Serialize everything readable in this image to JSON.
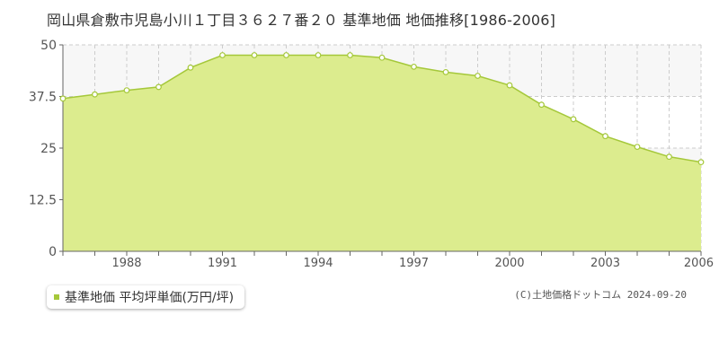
{
  "title": "岡山県倉敷市児島小川１丁目３６２７番２０ 基準地価 地価推移[1986-2006]",
  "legend": {
    "label": "基準地価 平均坪単価(万円/坪)"
  },
  "copyright": "(C)土地価格ドットコム 2024-09-20",
  "colors": {
    "fill": "#dcec8e",
    "line": "#a5c83a",
    "point_fill": "#ffffff",
    "grid": "#cccccc",
    "plot_bg": "#ffffff",
    "plot_bg_alt": "#f7f7f7"
  },
  "chart_data": {
    "type": "area",
    "title": "岡山県倉敷市児島小川１丁目３６２７番２０ 基準地価 地価推移[1986-2006]",
    "xlabel": "",
    "ylabel": "",
    "x": [
      1986,
      1987,
      1988,
      1989,
      1990,
      1991,
      1992,
      1993,
      1994,
      1995,
      1996,
      1997,
      1998,
      1999,
      2000,
      2001,
      2002,
      2003,
      2004,
      2005,
      2006
    ],
    "series": [
      {
        "name": "基準地価 平均坪単価(万円/坪)",
        "values": [
          37.0,
          38.0,
          39.0,
          39.8,
          44.5,
          47.5,
          47.5,
          47.5,
          47.5,
          47.5,
          46.9,
          44.7,
          43.4,
          42.5,
          40.2,
          35.5,
          32.0,
          27.9,
          25.3,
          22.9,
          21.6
        ]
      }
    ],
    "ylim": [
      0,
      50
    ],
    "xlim": [
      1986,
      2006
    ],
    "y_ticks": [
      "0",
      "12.5",
      "25",
      "37.5",
      "50"
    ],
    "x_ticks": [
      "1988",
      "1991",
      "1994",
      "1997",
      "2000",
      "2003",
      "2006"
    ],
    "grid": true,
    "legend_position": "bottom-left"
  }
}
